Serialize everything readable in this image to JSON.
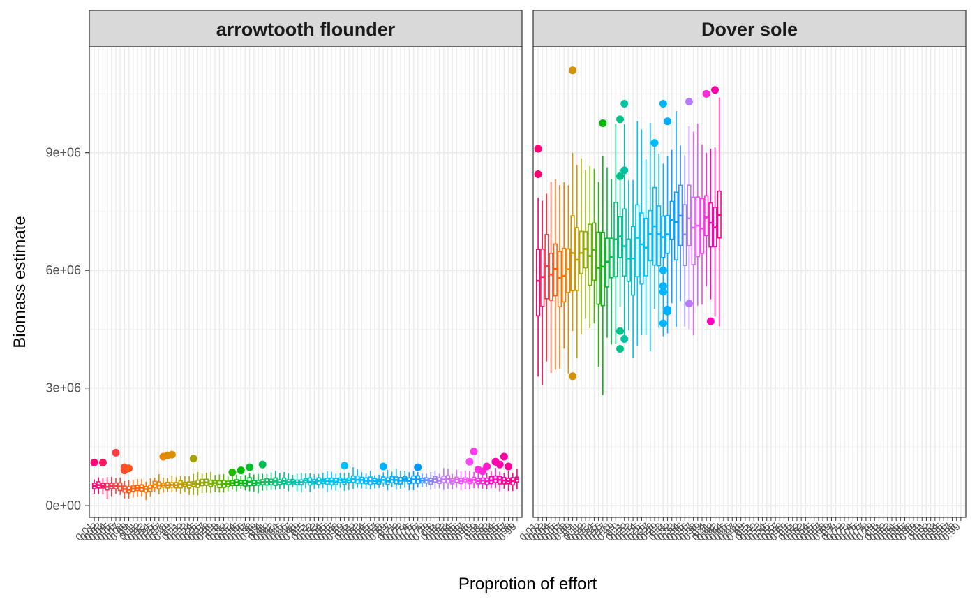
{
  "chart_data": {
    "type": "boxplot",
    "xlabel": "Proprotion of effort",
    "ylabel": "Biomass estimate",
    "ylim": [
      -300000,
      11700000
    ],
    "y_ticks": [
      0,
      3000000,
      6000000,
      9000000
    ],
    "y_tick_labels": [
      "0e+00",
      "3e+06",
      "6e+06",
      "9e+06"
    ],
    "n_categories": 99,
    "category_labels": [
      "0.01",
      "0.02",
      "0.03",
      "0.04",
      "0.05",
      "0.06",
      "0.07",
      "0.08",
      "0.09",
      "0.1",
      "0.11",
      "0.12",
      "0.13",
      "0.14",
      "0.15",
      "0.16",
      "0.17",
      "0.18",
      "0.19",
      "0.2",
      "0.21",
      "0.22",
      "0.23",
      "0.24",
      "0.25",
      "0.26",
      "0.27",
      "0.28",
      "0.29",
      "0.3",
      "0.31",
      "0.32",
      "0.33",
      "0.34",
      "0.35",
      "0.36",
      "0.37",
      "0.38",
      "0.39",
      "0.4",
      "0.41",
      "0.42",
      "0.43",
      "0.44",
      "0.45",
      "0.46",
      "0.47",
      "0.48",
      "0.49",
      "0.5",
      "0.51",
      "0.52",
      "0.53",
      "0.54",
      "0.55",
      "0.56",
      "0.57",
      "0.58",
      "0.59",
      "0.6",
      "0.61",
      "0.62",
      "0.63",
      "0.64",
      "0.65",
      "0.66",
      "0.67",
      "0.68",
      "0.69",
      "0.7",
      "0.71",
      "0.72",
      "0.73",
      "0.74",
      "0.75",
      "0.76",
      "0.77",
      "0.78",
      "0.79",
      "0.8",
      "0.81",
      "0.82",
      "0.83",
      "0.84",
      "0.85",
      "0.86",
      "0.87",
      "0.88",
      "0.89",
      "0.9",
      "0.91",
      "0.92",
      "0.93",
      "0.94",
      "0.95",
      "0.96",
      "0.97",
      "0.98",
      "0.99"
    ],
    "grid": true,
    "legend": "none",
    "panels": [
      {
        "name": "arrowtooth flounder",
        "n_boxes": 99,
        "median_range": [
          420000,
          650000
        ],
        "outliers": [
          {
            "x": 1,
            "y": 1100000
          },
          {
            "x": 3,
            "y": 1100000
          },
          {
            "x": 6,
            "y": 1350000
          },
          {
            "x": 8,
            "y": 900000
          },
          {
            "x": 8,
            "y": 980000
          },
          {
            "x": 9,
            "y": 950000
          },
          {
            "x": 17,
            "y": 1250000
          },
          {
            "x": 18,
            "y": 1280000
          },
          {
            "x": 19,
            "y": 1300000
          },
          {
            "x": 24,
            "y": 1200000
          },
          {
            "x": 33,
            "y": 850000
          },
          {
            "x": 35,
            "y": 900000
          },
          {
            "x": 37,
            "y": 980000
          },
          {
            "x": 40,
            "y": 1050000
          },
          {
            "x": 59,
            "y": 1020000
          },
          {
            "x": 68,
            "y": 1000000
          },
          {
            "x": 76,
            "y": 980000
          },
          {
            "x": 88,
            "y": 1120000
          },
          {
            "x": 89,
            "y": 1380000
          },
          {
            "x": 90,
            "y": 920000
          },
          {
            "x": 91,
            "y": 880000
          },
          {
            "x": 94,
            "y": 1120000
          }
        ],
        "outliers_right": [
          {
            "x": 97,
            "y": 1000000
          },
          {
            "x": 96,
            "y": 1250000
          },
          {
            "x": 95,
            "y": 1050000
          },
          {
            "x": 92,
            "y": 1000000
          }
        ]
      },
      {
        "name": "Dover sole",
        "n_boxes": 43,
        "median_range": [
          5800000,
          7400000
        ],
        "outliers": [
          {
            "x": 1,
            "y": 9100000
          },
          {
            "x": 1,
            "y": 8450000
          },
          {
            "x": 9,
            "y": 11100000
          },
          {
            "x": 9,
            "y": 3300000
          },
          {
            "x": 16,
            "y": 9750000
          },
          {
            "x": 20,
            "y": 9850000
          },
          {
            "x": 20,
            "y": 8400000
          },
          {
            "x": 20,
            "y": 4450000
          },
          {
            "x": 20,
            "y": 4000000
          },
          {
            "x": 21,
            "y": 10250000
          },
          {
            "x": 21,
            "y": 8550000
          },
          {
            "x": 21,
            "y": 4250000
          },
          {
            "x": 28,
            "y": 9250000
          },
          {
            "x": 30,
            "y": 10250000
          },
          {
            "x": 30,
            "y": 6000000
          },
          {
            "x": 30,
            "y": 5600000
          },
          {
            "x": 30,
            "y": 5450000
          },
          {
            "x": 30,
            "y": 4650000
          },
          {
            "x": 31,
            "y": 9800000
          },
          {
            "x": 31,
            "y": 5000000
          },
          {
            "x": 31,
            "y": 4950000
          },
          {
            "x": 36,
            "y": 10300000
          },
          {
            "x": 36,
            "y": 5150000
          },
          {
            "x": 40,
            "y": 10500000
          },
          {
            "x": 41,
            "y": 4700000
          },
          {
            "x": 42,
            "y": 10600000
          }
        ]
      }
    ]
  }
}
